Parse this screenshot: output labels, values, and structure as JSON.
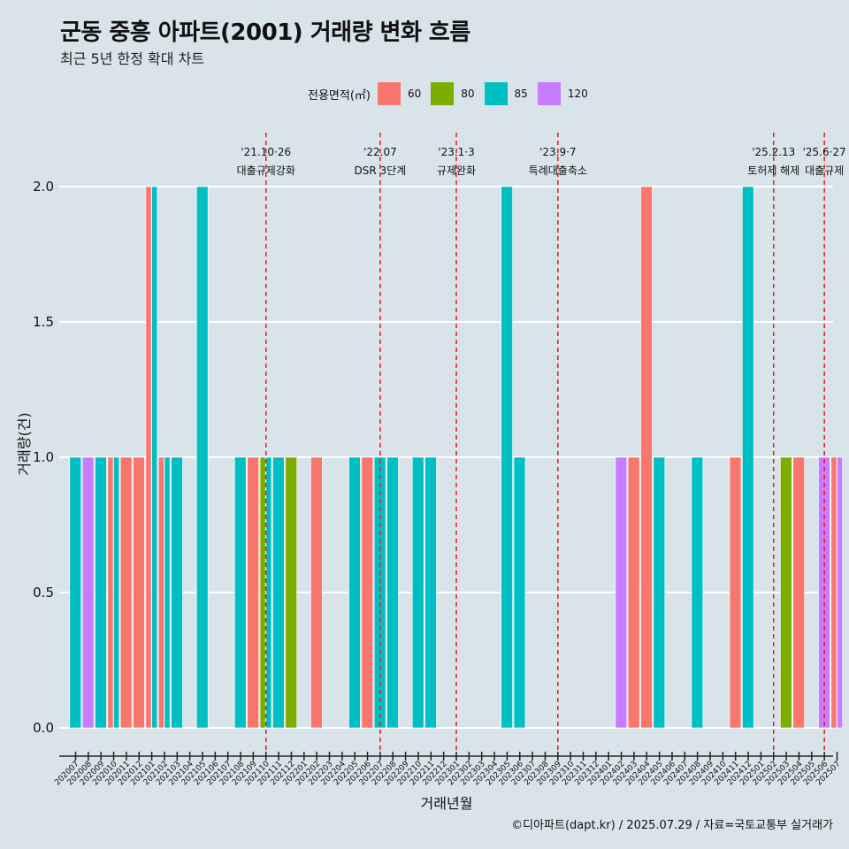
{
  "title": "군동 중흥 아파트(2001) 거래량 변화 흐름",
  "subtitle": "최근 5년 한정 확대 차트",
  "caption": "©디아파트(dapt.kr) / 2025.07.29 / 자료=국토교통부 실거래가",
  "legend": {
    "title": "전용면적(㎡)",
    "items": [
      {
        "label": "60",
        "color": "#f8766d"
      },
      {
        "label": "80",
        "color": "#7cae00"
      },
      {
        "label": "85",
        "color": "#00bfc4"
      },
      {
        "label": "120",
        "color": "#c77cff"
      }
    ]
  },
  "chart_data": {
    "type": "bar",
    "xlabel": "거래년월",
    "ylabel": "거래량(건)",
    "ylim": [
      0,
      2
    ],
    "yticks": [
      "0.0",
      "0.5",
      "1.0",
      "1.5",
      "2.0"
    ],
    "categories": [
      "202007",
      "202008",
      "202009",
      "202010",
      "202011",
      "202012",
      "202101",
      "202102",
      "202103",
      "202104",
      "202105",
      "202106",
      "202107",
      "202108",
      "202109",
      "202110",
      "202111",
      "202112",
      "202201",
      "202202",
      "202203",
      "202204",
      "202205",
      "202206",
      "202207",
      "202208",
      "202209",
      "202210",
      "202211",
      "202212",
      "202301",
      "202302",
      "202303",
      "202304",
      "202305",
      "202306",
      "202307",
      "202308",
      "202309",
      "202310",
      "202311",
      "202312",
      "202401",
      "202402",
      "202403",
      "202404",
      "202405",
      "202406",
      "202407",
      "202408",
      "202409",
      "202410",
      "202411",
      "202412",
      "202501",
      "202502",
      "202503",
      "202504",
      "202505",
      "202506",
      "202507"
    ],
    "series": [
      {
        "name": "60",
        "color": "#f8766d",
        "values": [
          0,
          0,
          0,
          1,
          1,
          1,
          2,
          1,
          0,
          0,
          0,
          0,
          0,
          0,
          1,
          0,
          0,
          0,
          0,
          1,
          0,
          0,
          0,
          1,
          0,
          0,
          0,
          0,
          0,
          0,
          0,
          0,
          0,
          0,
          0,
          0,
          0,
          0,
          0,
          0,
          0,
          0,
          0,
          0,
          1,
          2,
          0,
          0,
          0,
          0,
          0,
          0,
          1,
          0,
          0,
          0,
          0,
          1,
          0,
          0,
          1
        ]
      },
      {
        "name": "80",
        "color": "#7cae00",
        "values": [
          0,
          0,
          0,
          0,
          0,
          0,
          0,
          0,
          0,
          0,
          0,
          0,
          0,
          0,
          0,
          1,
          0,
          1,
          0,
          0,
          0,
          0,
          0,
          0,
          0,
          0,
          0,
          0,
          0,
          0,
          0,
          0,
          0,
          0,
          0,
          0,
          0,
          0,
          0,
          0,
          0,
          0,
          0,
          0,
          0,
          0,
          0,
          0,
          0,
          0,
          0,
          0,
          0,
          0,
          0,
          0,
          1,
          0,
          0,
          0,
          0
        ]
      },
      {
        "name": "85",
        "color": "#00bfc4",
        "values": [
          1,
          0,
          1,
          1,
          0,
          0,
          2,
          1,
          1,
          0,
          2,
          0,
          0,
          1,
          0,
          1,
          1,
          0,
          0,
          0,
          0,
          0,
          1,
          0,
          1,
          1,
          0,
          1,
          1,
          0,
          0,
          0,
          0,
          0,
          2,
          1,
          0,
          0,
          0,
          0,
          0,
          0,
          0,
          0,
          0,
          0,
          1,
          0,
          0,
          1,
          0,
          0,
          0,
          2,
          0,
          0,
          0,
          0,
          0,
          0,
          0
        ]
      },
      {
        "name": "120",
        "color": "#c77cff",
        "values": [
          0,
          1,
          0,
          0,
          0,
          0,
          0,
          0,
          0,
          0,
          0,
          0,
          0,
          0,
          0,
          0,
          0,
          0,
          0,
          0,
          0,
          0,
          0,
          0,
          0,
          0,
          0,
          0,
          0,
          0,
          0,
          0,
          0,
          0,
          0,
          0,
          0,
          0,
          0,
          0,
          0,
          0,
          0,
          1,
          0,
          0,
          0,
          0,
          0,
          0,
          0,
          0,
          0,
          0,
          0,
          0,
          0,
          0,
          0,
          1,
          1
        ]
      }
    ],
    "annotations": [
      {
        "month": "202110",
        "date": "'21.10·26",
        "label": "대출규제강화"
      },
      {
        "month": "202207",
        "date": "'22.07",
        "label": "DSR 3단계"
      },
      {
        "month": "202301",
        "date": "'23.1·3",
        "label": "규제완화"
      },
      {
        "month": "202309",
        "date": "'23.9·7",
        "label": "특례대출축소"
      },
      {
        "month": "202502",
        "date": "'25.2.13",
        "label": "토허제 해제"
      },
      {
        "month": "202506",
        "date": "'25.6·27",
        "label": "대출규제"
      }
    ]
  }
}
